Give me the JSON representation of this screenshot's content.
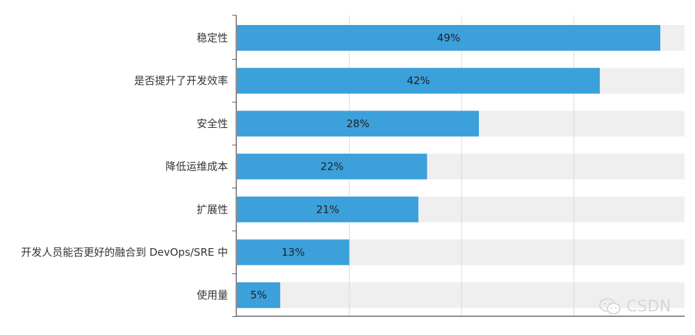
{
  "chart_data": {
    "type": "bar",
    "orientation": "horizontal",
    "title": "",
    "xlabel": "",
    "ylabel": "",
    "xlim": [
      0,
      50
    ],
    "grid": true,
    "categories": [
      "稳定性",
      "是否提升了开发效率",
      "安全性",
      "降低运维成本",
      "扩展性",
      "开发人员能否更好的融合到 DevOps/SRE 中",
      "使用量"
    ],
    "values": [
      49,
      42,
      28,
      22,
      21,
      13,
      5
    ],
    "value_labels": [
      "49%",
      "42%",
      "28%",
      "22%",
      "21%",
      "13%",
      "5%"
    ],
    "bar_color": "#3ca0db",
    "track_color": "#efefef"
  },
  "watermark": {
    "text": "CSDN",
    "icon": "wechat-icon"
  }
}
